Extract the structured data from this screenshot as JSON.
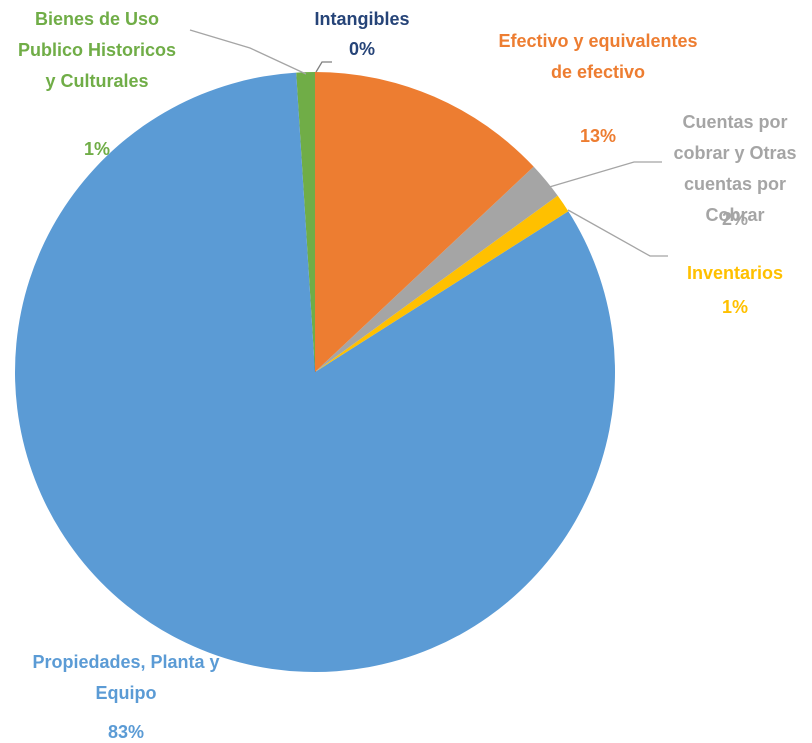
{
  "chart_data": {
    "type": "pie",
    "categories": [
      "Efectivo y equivalentes de efectivo",
      "Cuentas por cobrar y Otras cuentas por Cobrar",
      "Inventarios",
      "Propiedades, Planta y Equipo",
      "Bienes de Uso Publico Historicos y Culturales",
      "Intangibles"
    ],
    "values": [
      13,
      2,
      1,
      83,
      1,
      0
    ],
    "value_labels": [
      "13%",
      "2%",
      "1%",
      "83%",
      "1%",
      "0%"
    ],
    "colors": [
      "#ED7D31",
      "#A5A5A5",
      "#FFC000",
      "#5B9BD5",
      "#70AD47",
      "#264478"
    ]
  }
}
